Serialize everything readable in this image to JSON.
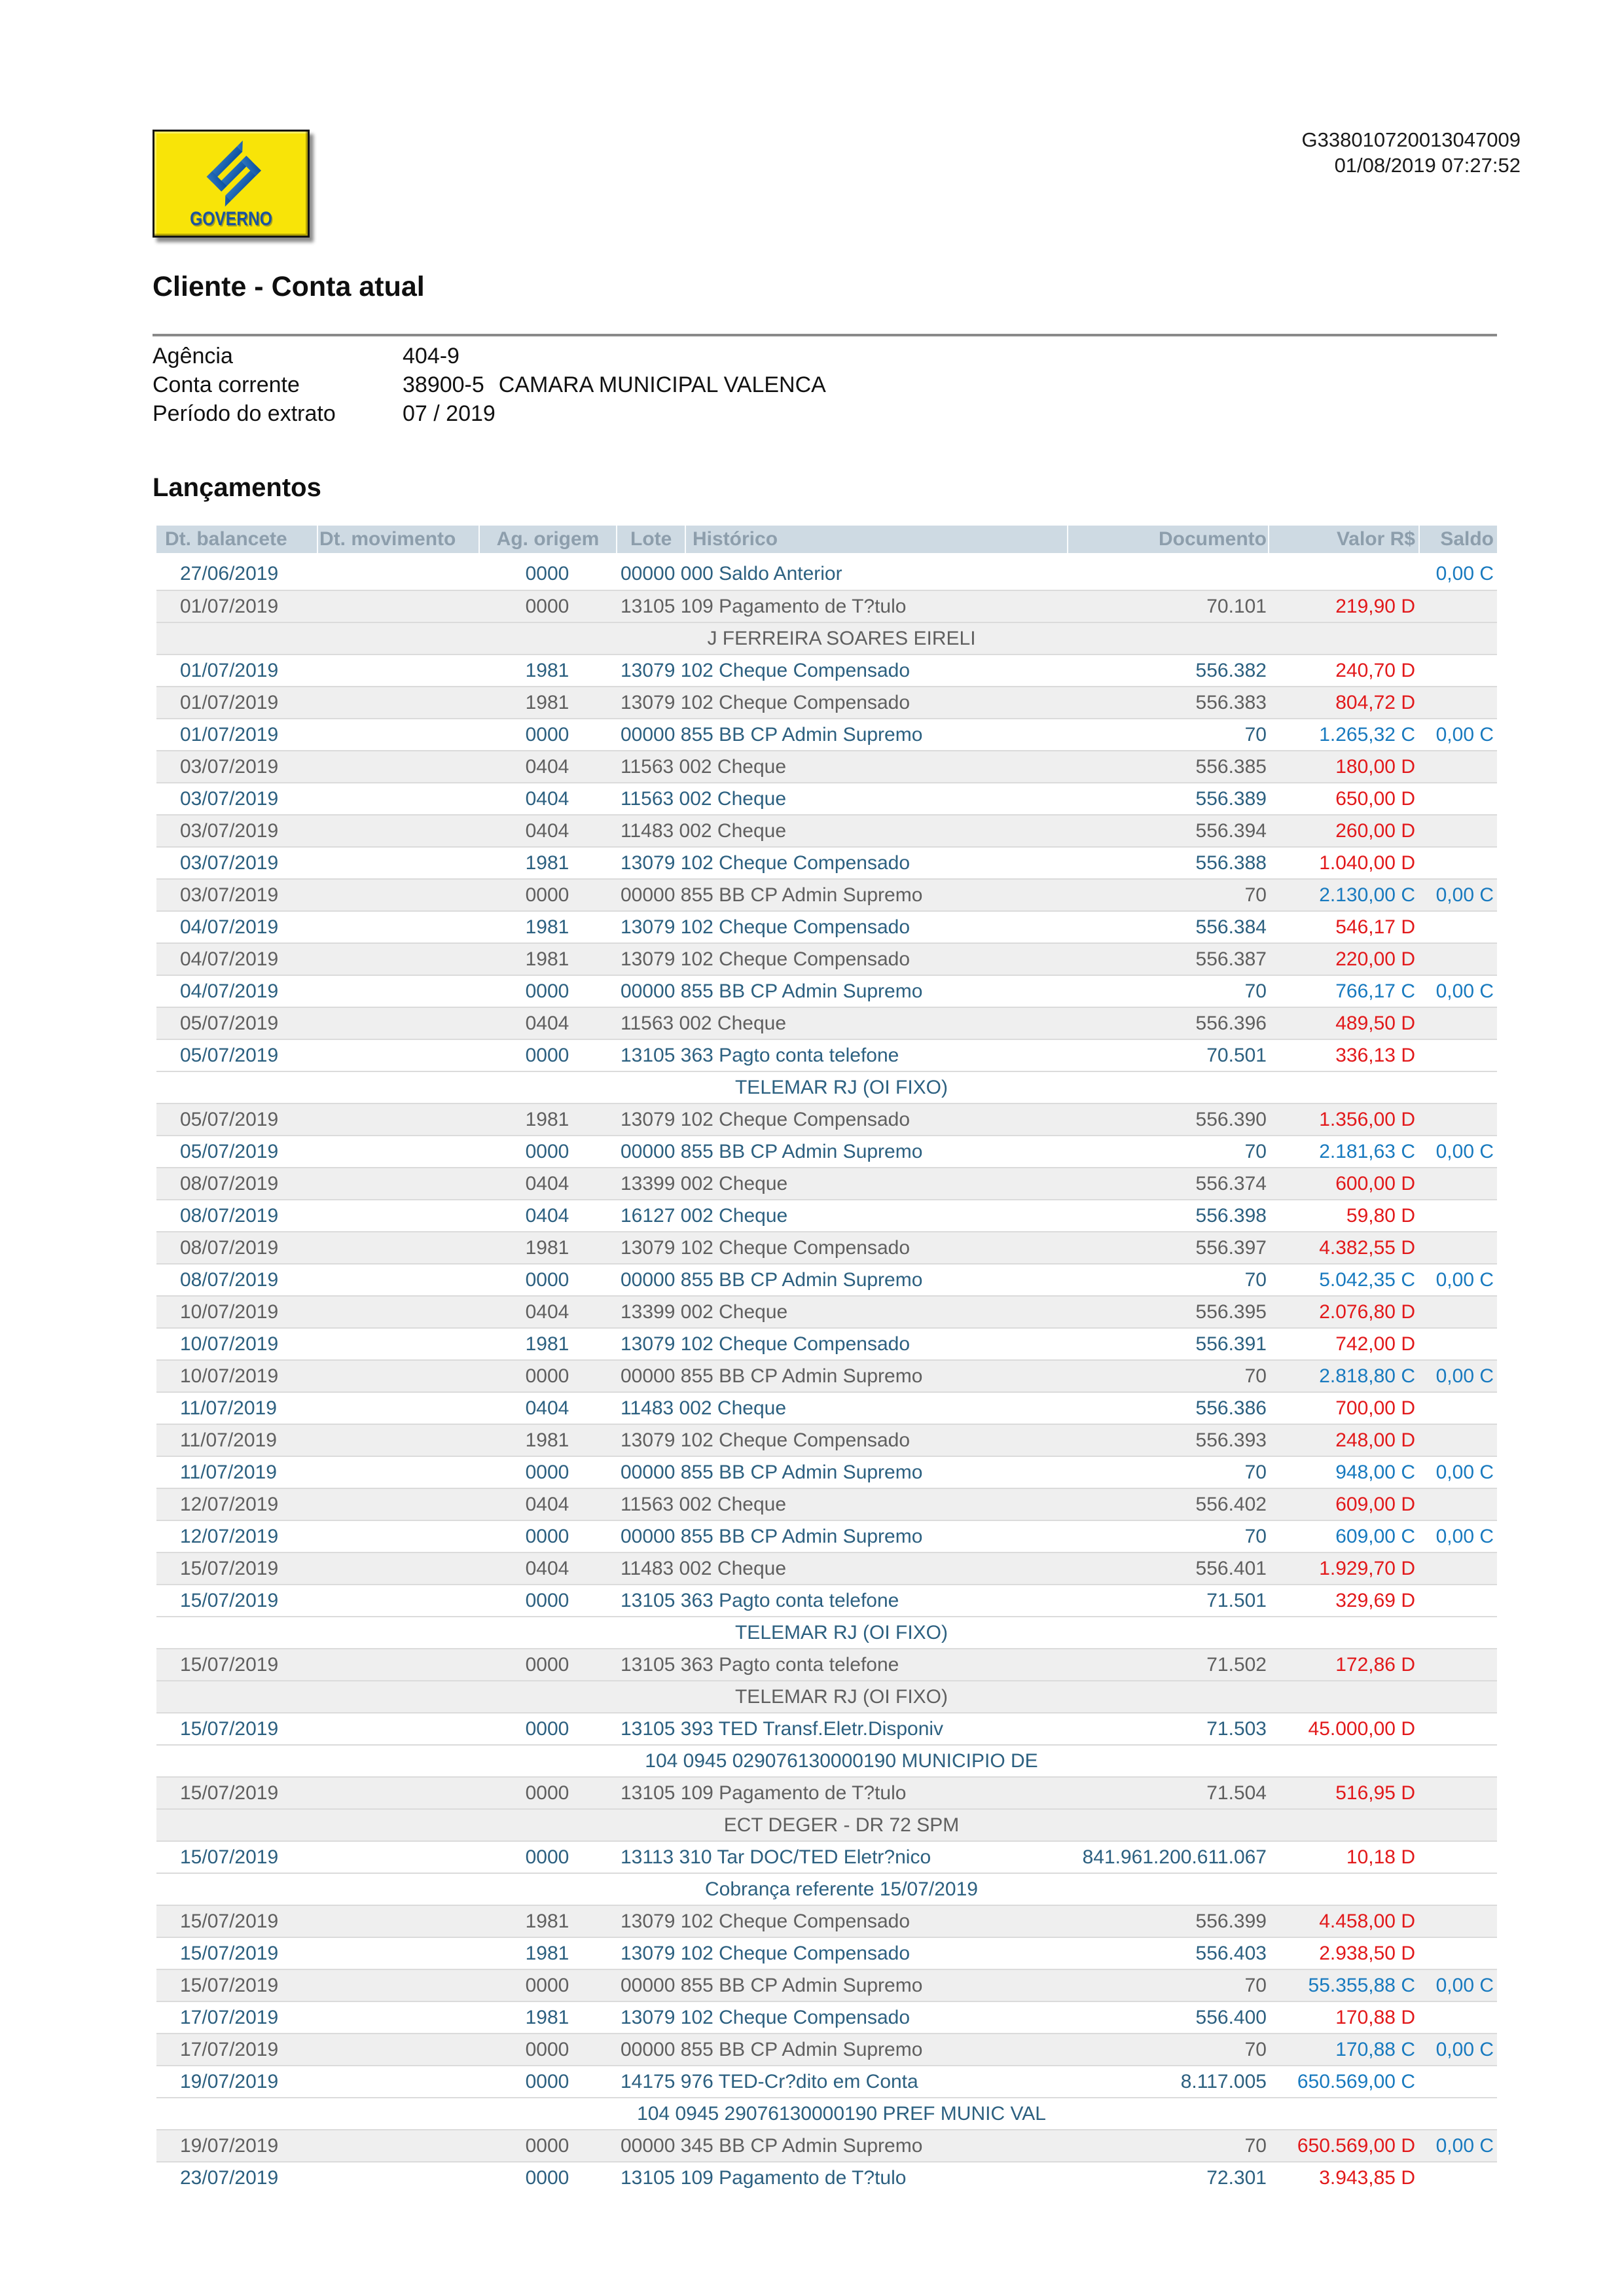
{
  "meta": {
    "doc_number": "G338010720013047009",
    "datetime": "01/08/2019 07:27:52"
  },
  "logo": {
    "text": "GOVERNO",
    "icon": "bb-emblem-icon"
  },
  "title": "Cliente - Conta atual",
  "account": {
    "rows": [
      {
        "label": "Agência",
        "value": "404-9",
        "extra": ""
      },
      {
        "label": "Conta corrente",
        "value": "38900-5",
        "extra": "CAMARA MUNICIPAL VALENCA"
      },
      {
        "label": "Período do extrato",
        "value": "07 / 2019",
        "extra": ""
      }
    ]
  },
  "section_title": "Lançamentos",
  "table": {
    "headers": [
      "Dt. balancete",
      "Dt. movimento",
      "Ag. origem",
      "Lote",
      "Histórico",
      "Documento",
      "Valor R$",
      "Saldo"
    ],
    "rows": [
      {
        "t": "d",
        "s": "w",
        "dt": "27/06/2019",
        "ag": "0000",
        "hist": "00000 000 Saldo Anterior",
        "doc": "",
        "valor": "",
        "vt": "",
        "saldo": "0,00",
        "st": "C"
      },
      {
        "t": "d",
        "s": "g",
        "dt": "01/07/2019",
        "ag": "0000",
        "hist": "13105 109 Pagamento de T?tulo",
        "doc": "70.101",
        "valor": "219,90",
        "vt": "D"
      },
      {
        "t": "c",
        "s": "g",
        "text": "J FERREIRA SOARES EIRELI"
      },
      {
        "t": "d",
        "s": "w",
        "dt": "01/07/2019",
        "ag": "1981",
        "hist": "13079 102 Cheque Compensado",
        "doc": "556.382",
        "valor": "240,70",
        "vt": "D"
      },
      {
        "t": "d",
        "s": "g",
        "dt": "01/07/2019",
        "ag": "1981",
        "hist": "13079 102 Cheque Compensado",
        "doc": "556.383",
        "valor": "804,72",
        "vt": "D"
      },
      {
        "t": "d",
        "s": "w",
        "dt": "01/07/2019",
        "ag": "0000",
        "hist": "00000 855 BB CP Admin Supremo",
        "doc": "70",
        "valor": "1.265,32",
        "vt": "C",
        "saldo": "0,00",
        "st": "C"
      },
      {
        "t": "d",
        "s": "g",
        "dt": "03/07/2019",
        "ag": "0404",
        "hist": "11563 002 Cheque",
        "doc": "556.385",
        "valor": "180,00",
        "vt": "D"
      },
      {
        "t": "d",
        "s": "w",
        "dt": "03/07/2019",
        "ag": "0404",
        "hist": "11563 002 Cheque",
        "doc": "556.389",
        "valor": "650,00",
        "vt": "D"
      },
      {
        "t": "d",
        "s": "g",
        "dt": "03/07/2019",
        "ag": "0404",
        "hist": "11483 002 Cheque",
        "doc": "556.394",
        "valor": "260,00",
        "vt": "D"
      },
      {
        "t": "d",
        "s": "w",
        "dt": "03/07/2019",
        "ag": "1981",
        "hist": "13079 102 Cheque Compensado",
        "doc": "556.388",
        "valor": "1.040,00",
        "vt": "D"
      },
      {
        "t": "d",
        "s": "g",
        "dt": "03/07/2019",
        "ag": "0000",
        "hist": "00000 855 BB CP Admin Supremo",
        "doc": "70",
        "valor": "2.130,00",
        "vt": "C",
        "saldo": "0,00",
        "st": "C"
      },
      {
        "t": "d",
        "s": "w",
        "dt": "04/07/2019",
        "ag": "1981",
        "hist": "13079 102 Cheque Compensado",
        "doc": "556.384",
        "valor": "546,17",
        "vt": "D"
      },
      {
        "t": "d",
        "s": "g",
        "dt": "04/07/2019",
        "ag": "1981",
        "hist": "13079 102 Cheque Compensado",
        "doc": "556.387",
        "valor": "220,00",
        "vt": "D"
      },
      {
        "t": "d",
        "s": "w",
        "dt": "04/07/2019",
        "ag": "0000",
        "hist": "00000 855 BB CP Admin Supremo",
        "doc": "70",
        "valor": "766,17",
        "vt": "C",
        "saldo": "0,00",
        "st": "C"
      },
      {
        "t": "d",
        "s": "g",
        "dt": "05/07/2019",
        "ag": "0404",
        "hist": "11563 002 Cheque",
        "doc": "556.396",
        "valor": "489,50",
        "vt": "D"
      },
      {
        "t": "d",
        "s": "w",
        "dt": "05/07/2019",
        "ag": "0000",
        "hist": "13105 363 Pagto conta telefone",
        "doc": "70.501",
        "valor": "336,13",
        "vt": "D"
      },
      {
        "t": "c",
        "s": "w",
        "text": "TELEMAR RJ (OI FIXO)"
      },
      {
        "t": "d",
        "s": "g",
        "dt": "05/07/2019",
        "ag": "1981",
        "hist": "13079 102 Cheque Compensado",
        "doc": "556.390",
        "valor": "1.356,00",
        "vt": "D"
      },
      {
        "t": "d",
        "s": "w",
        "dt": "05/07/2019",
        "ag": "0000",
        "hist": "00000 855 BB CP Admin Supremo",
        "doc": "70",
        "valor": "2.181,63",
        "vt": "C",
        "saldo": "0,00",
        "st": "C"
      },
      {
        "t": "d",
        "s": "g",
        "dt": "08/07/2019",
        "ag": "0404",
        "hist": "13399 002 Cheque",
        "doc": "556.374",
        "valor": "600,00",
        "vt": "D"
      },
      {
        "t": "d",
        "s": "w",
        "dt": "08/07/2019",
        "ag": "0404",
        "hist": "16127 002 Cheque",
        "doc": "556.398",
        "valor": "59,80",
        "vt": "D"
      },
      {
        "t": "d",
        "s": "g",
        "dt": "08/07/2019",
        "ag": "1981",
        "hist": "13079 102 Cheque Compensado",
        "doc": "556.397",
        "valor": "4.382,55",
        "vt": "D"
      },
      {
        "t": "d",
        "s": "w",
        "dt": "08/07/2019",
        "ag": "0000",
        "hist": "00000 855 BB CP Admin Supremo",
        "doc": "70",
        "valor": "5.042,35",
        "vt": "C",
        "saldo": "0,00",
        "st": "C"
      },
      {
        "t": "d",
        "s": "g",
        "dt": "10/07/2019",
        "ag": "0404",
        "hist": "13399 002 Cheque",
        "doc": "556.395",
        "valor": "2.076,80",
        "vt": "D"
      },
      {
        "t": "d",
        "s": "w",
        "dt": "10/07/2019",
        "ag": "1981",
        "hist": "13079 102 Cheque Compensado",
        "doc": "556.391",
        "valor": "742,00",
        "vt": "D"
      },
      {
        "t": "d",
        "s": "g",
        "dt": "10/07/2019",
        "ag": "0000",
        "hist": "00000 855 BB CP Admin Supremo",
        "doc": "70",
        "valor": "2.818,80",
        "vt": "C",
        "saldo": "0,00",
        "st": "C"
      },
      {
        "t": "d",
        "s": "w",
        "dt": "11/07/2019",
        "ag": "0404",
        "hist": "11483 002 Cheque",
        "doc": "556.386",
        "valor": "700,00",
        "vt": "D"
      },
      {
        "t": "d",
        "s": "g",
        "dt": "11/07/2019",
        "ag": "1981",
        "hist": "13079 102 Cheque Compensado",
        "doc": "556.393",
        "valor": "248,00",
        "vt": "D"
      },
      {
        "t": "d",
        "s": "w",
        "dt": "11/07/2019",
        "ag": "0000",
        "hist": "00000 855 BB CP Admin Supremo",
        "doc": "70",
        "valor": "948,00",
        "vt": "C",
        "saldo": "0,00",
        "st": "C"
      },
      {
        "t": "d",
        "s": "g",
        "dt": "12/07/2019",
        "ag": "0404",
        "hist": "11563 002 Cheque",
        "doc": "556.402",
        "valor": "609,00",
        "vt": "D"
      },
      {
        "t": "d",
        "s": "w",
        "dt": "12/07/2019",
        "ag": "0000",
        "hist": "00000 855 BB CP Admin Supremo",
        "doc": "70",
        "valor": "609,00",
        "vt": "C",
        "saldo": "0,00",
        "st": "C"
      },
      {
        "t": "d",
        "s": "g",
        "dt": "15/07/2019",
        "ag": "0404",
        "hist": "11483 002 Cheque",
        "doc": "556.401",
        "valor": "1.929,70",
        "vt": "D"
      },
      {
        "t": "d",
        "s": "w",
        "dt": "15/07/2019",
        "ag": "0000",
        "hist": "13105 363 Pagto conta telefone",
        "doc": "71.501",
        "valor": "329,69",
        "vt": "D"
      },
      {
        "t": "c",
        "s": "w",
        "text": "TELEMAR RJ (OI FIXO)"
      },
      {
        "t": "d",
        "s": "g",
        "dt": "15/07/2019",
        "ag": "0000",
        "hist": "13105 363 Pagto conta telefone",
        "doc": "71.502",
        "valor": "172,86",
        "vt": "D"
      },
      {
        "t": "c",
        "s": "g",
        "text": "TELEMAR RJ (OI FIXO)"
      },
      {
        "t": "d",
        "s": "w",
        "dt": "15/07/2019",
        "ag": "0000",
        "hist": "13105 393 TED Transf.Eletr.Disponiv",
        "doc": "71.503",
        "valor": "45.000,00",
        "vt": "D"
      },
      {
        "t": "c",
        "s": "w",
        "text": "104 0945 029076130000190 MUNICIPIO DE"
      },
      {
        "t": "d",
        "s": "g",
        "dt": "15/07/2019",
        "ag": "0000",
        "hist": "13105 109 Pagamento de T?tulo",
        "doc": "71.504",
        "valor": "516,95",
        "vt": "D"
      },
      {
        "t": "c",
        "s": "g",
        "text": "ECT DEGER - DR 72 SPM"
      },
      {
        "t": "d",
        "s": "w",
        "dt": "15/07/2019",
        "ag": "0000",
        "hist": "13113 310 Tar DOC/TED Eletr?nico",
        "doc": "841.961.200.611.067",
        "valor": "10,18",
        "vt": "D"
      },
      {
        "t": "c",
        "s": "w",
        "text": "Cobrança referente 15/07/2019"
      },
      {
        "t": "d",
        "s": "g",
        "dt": "15/07/2019",
        "ag": "1981",
        "hist": "13079 102 Cheque Compensado",
        "doc": "556.399",
        "valor": "4.458,00",
        "vt": "D"
      },
      {
        "t": "d",
        "s": "w",
        "dt": "15/07/2019",
        "ag": "1981",
        "hist": "13079 102 Cheque Compensado",
        "doc": "556.403",
        "valor": "2.938,50",
        "vt": "D"
      },
      {
        "t": "d",
        "s": "g",
        "dt": "15/07/2019",
        "ag": "0000",
        "hist": "00000 855 BB CP Admin Supremo",
        "doc": "70",
        "valor": "55.355,88",
        "vt": "C",
        "saldo": "0,00",
        "st": "C"
      },
      {
        "t": "d",
        "s": "w",
        "dt": "17/07/2019",
        "ag": "1981",
        "hist": "13079 102 Cheque Compensado",
        "doc": "556.400",
        "valor": "170,88",
        "vt": "D"
      },
      {
        "t": "d",
        "s": "g",
        "dt": "17/07/2019",
        "ag": "0000",
        "hist": "00000 855 BB CP Admin Supremo",
        "doc": "70",
        "valor": "170,88",
        "vt": "C",
        "saldo": "0,00",
        "st": "C"
      },
      {
        "t": "d",
        "s": "w",
        "dt": "19/07/2019",
        "ag": "0000",
        "hist": "14175 976 TED-Cr?dito em Conta",
        "doc": "8.117.005",
        "valor": "650.569,00",
        "vt": "C"
      },
      {
        "t": "c",
        "s": "w",
        "text": "104 0945 29076130000190 PREF MUNIC VAL"
      },
      {
        "t": "d",
        "s": "g",
        "dt": "19/07/2019",
        "ag": "0000",
        "hist": "00000 345 BB CP Admin Supremo",
        "doc": "70",
        "valor": "650.569,00",
        "vt": "D",
        "saldo": "0,00",
        "st": "C"
      },
      {
        "t": "d",
        "s": "w",
        "dt": "23/07/2019",
        "ag": "0000",
        "hist": "13105 109 Pagamento de T?tulo",
        "doc": "72.301",
        "valor": "3.943,85",
        "vt": "D"
      }
    ]
  },
  "colors": {
    "debit_red": "#E2191B",
    "credit_blue": "#187ABF",
    "row_navy_text": "#2C6080",
    "row_gray_text": "#5F5F5F",
    "row_gray_bg": "#EFEFEF",
    "header_bg": "#CEDAE3",
    "header_text": "#8D9EAC",
    "logo_yellow": "#F8E408",
    "logo_blue": "#15509F"
  }
}
